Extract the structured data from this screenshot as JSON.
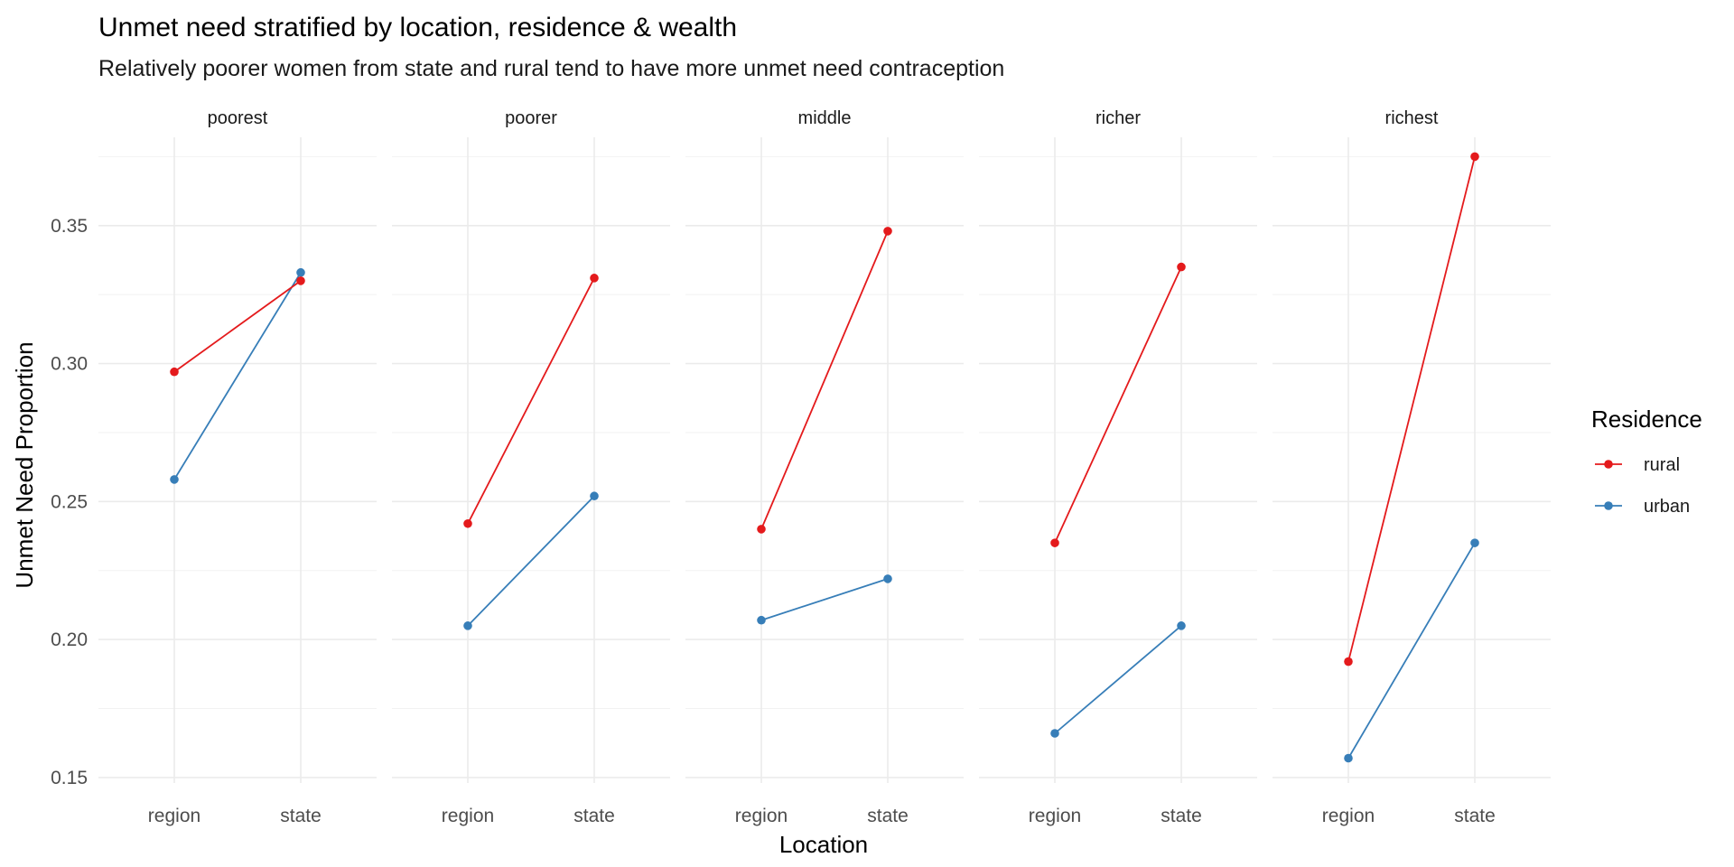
{
  "chart_data": {
    "type": "line",
    "title": "Unmet need stratified by location, residence & wealth",
    "subtitle": "Relatively poorer women from state and rural tend to have more unmet need contraception",
    "xlabel": "Location",
    "ylabel": "Unmet Need Proportion",
    "x": [
      "region",
      "state"
    ],
    "ylim": [
      0.148,
      0.382
    ],
    "yticks": [
      "0.15",
      "0.20",
      "0.25",
      "0.30",
      "0.35"
    ],
    "grid": true,
    "legend": {
      "title": "Residence",
      "placement": "right",
      "entries": [
        "rural",
        "urban"
      ]
    },
    "colors": {
      "rural": "#E41A1C",
      "urban": "#377EB8"
    },
    "panels": [
      {
        "name": "poorest",
        "series": [
          {
            "name": "rural",
            "values": [
              0.297,
              0.33
            ]
          },
          {
            "name": "urban",
            "values": [
              0.258,
              0.333
            ]
          }
        ]
      },
      {
        "name": "poorer",
        "series": [
          {
            "name": "rural",
            "values": [
              0.242,
              0.331
            ]
          },
          {
            "name": "urban",
            "values": [
              0.205,
              0.252
            ]
          }
        ]
      },
      {
        "name": "middle",
        "series": [
          {
            "name": "rural",
            "values": [
              0.24,
              0.348
            ]
          },
          {
            "name": "urban",
            "values": [
              0.207,
              0.222
            ]
          }
        ]
      },
      {
        "name": "richer",
        "series": [
          {
            "name": "rural",
            "values": [
              0.235,
              0.335
            ]
          },
          {
            "name": "urban",
            "values": [
              0.166,
              0.205
            ]
          }
        ]
      },
      {
        "name": "richest",
        "series": [
          {
            "name": "rural",
            "values": [
              0.192,
              0.375
            ]
          },
          {
            "name": "urban",
            "values": [
              0.157,
              0.235
            ]
          }
        ]
      }
    ]
  }
}
